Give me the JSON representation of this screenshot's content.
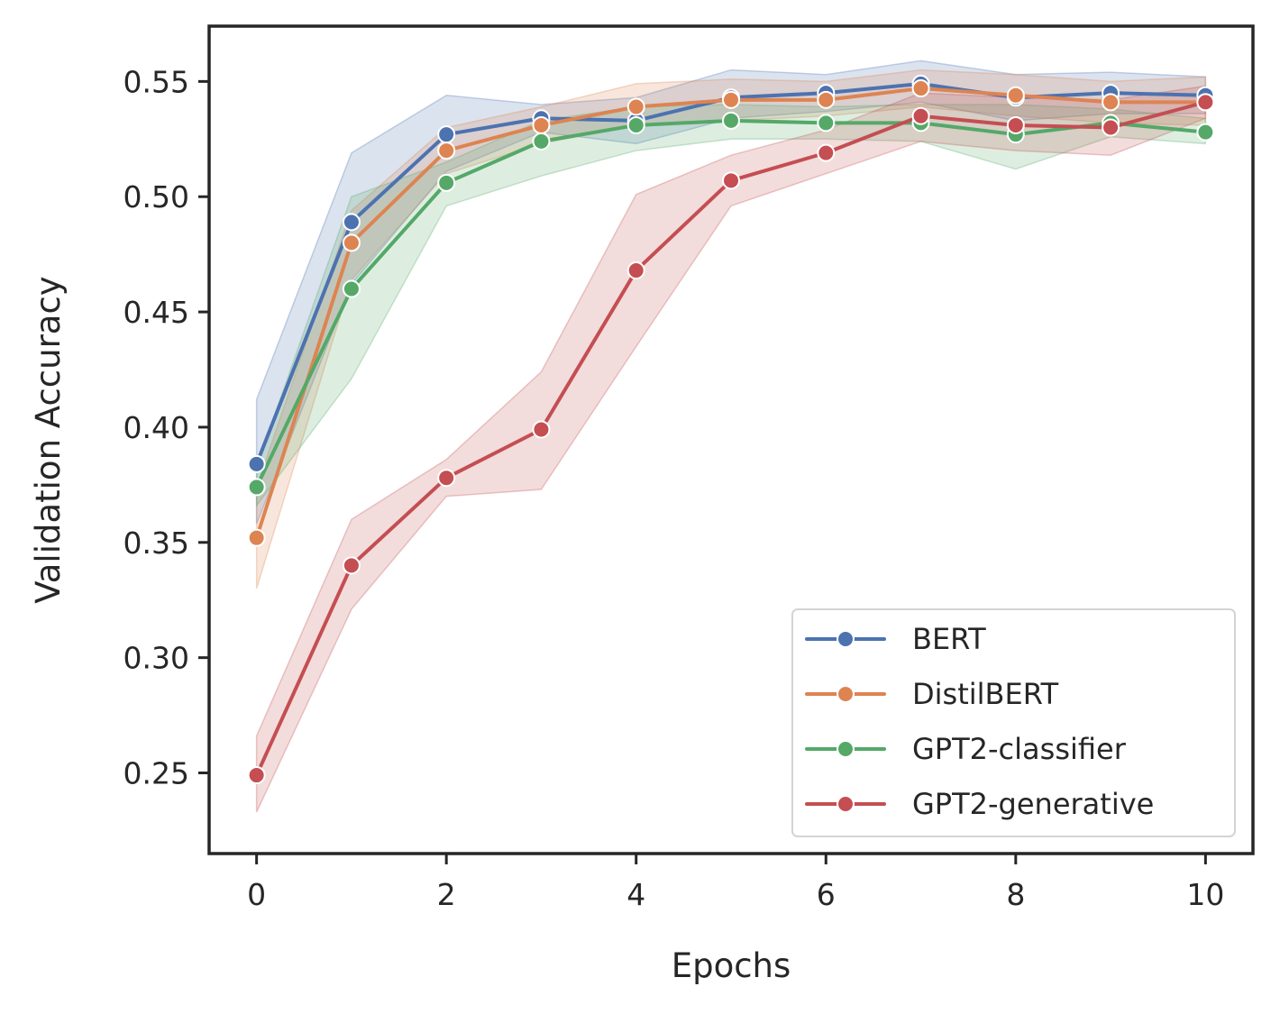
{
  "chart_data": {
    "type": "line",
    "title": "",
    "xlabel": "Epochs",
    "ylabel": "Validation Accuracy",
    "xlim": [
      -0.5,
      10.5
    ],
    "ylim": [
      0.215,
      0.574
    ],
    "xticks": [
      0,
      2,
      4,
      6,
      8,
      10
    ],
    "xtick_labels": [
      "0",
      "2",
      "4",
      "6",
      "8",
      "10"
    ],
    "yticks": [
      0.25,
      0.3,
      0.35,
      0.4,
      0.45,
      0.5,
      0.55
    ],
    "ytick_labels": [
      "0.25",
      "0.30",
      "0.35",
      "0.40",
      "0.45",
      "0.50",
      "0.55"
    ],
    "grid": false,
    "legend_position": "bottom-right",
    "x": [
      0,
      1,
      2,
      3,
      4,
      5,
      6,
      7,
      8,
      9,
      10
    ],
    "series": [
      {
        "name": "BERT",
        "color": "#4c72b0",
        "values": [
          0.384,
          0.489,
          0.527,
          0.534,
          0.533,
          0.543,
          0.545,
          0.549,
          0.543,
          0.545,
          0.544
        ],
        "lower": [
          0.358,
          0.462,
          0.511,
          0.528,
          0.523,
          0.534,
          0.537,
          0.541,
          0.533,
          0.536,
          0.536
        ],
        "upper": [
          0.412,
          0.519,
          0.544,
          0.54,
          0.543,
          0.555,
          0.553,
          0.559,
          0.553,
          0.554,
          0.552
        ]
      },
      {
        "name": "DistilBERT",
        "color": "#dd8452",
        "values": [
          0.352,
          0.48,
          0.52,
          0.531,
          0.539,
          0.542,
          0.542,
          0.547,
          0.544,
          0.541,
          0.541
        ],
        "lower": [
          0.33,
          0.464,
          0.51,
          0.523,
          0.531,
          0.533,
          0.535,
          0.539,
          0.535,
          0.532,
          0.531
        ],
        "upper": [
          0.374,
          0.494,
          0.53,
          0.539,
          0.549,
          0.551,
          0.55,
          0.555,
          0.553,
          0.55,
          0.552
        ]
      },
      {
        "name": "GPT2-classifier",
        "color": "#55a868",
        "values": [
          0.374,
          0.46,
          0.506,
          0.524,
          0.531,
          0.533,
          0.532,
          0.532,
          0.527,
          0.532,
          0.528
        ],
        "lower": [
          0.366,
          0.421,
          0.496,
          0.509,
          0.52,
          0.525,
          0.525,
          0.524,
          0.512,
          0.526,
          0.523
        ],
        "upper": [
          0.383,
          0.5,
          0.515,
          0.533,
          0.539,
          0.54,
          0.539,
          0.54,
          0.54,
          0.538,
          0.534
        ]
      },
      {
        "name": "GPT2-generative",
        "color": "#c44e52",
        "values": [
          0.249,
          0.34,
          0.378,
          0.399,
          0.468,
          0.507,
          0.519,
          0.535,
          0.531,
          0.53,
          0.541
        ],
        "lower": [
          0.233,
          0.321,
          0.37,
          0.373,
          0.435,
          0.496,
          0.51,
          0.524,
          0.52,
          0.518,
          0.534
        ],
        "upper": [
          0.266,
          0.36,
          0.386,
          0.424,
          0.501,
          0.518,
          0.529,
          0.545,
          0.543,
          0.542,
          0.548
        ]
      }
    ]
  }
}
